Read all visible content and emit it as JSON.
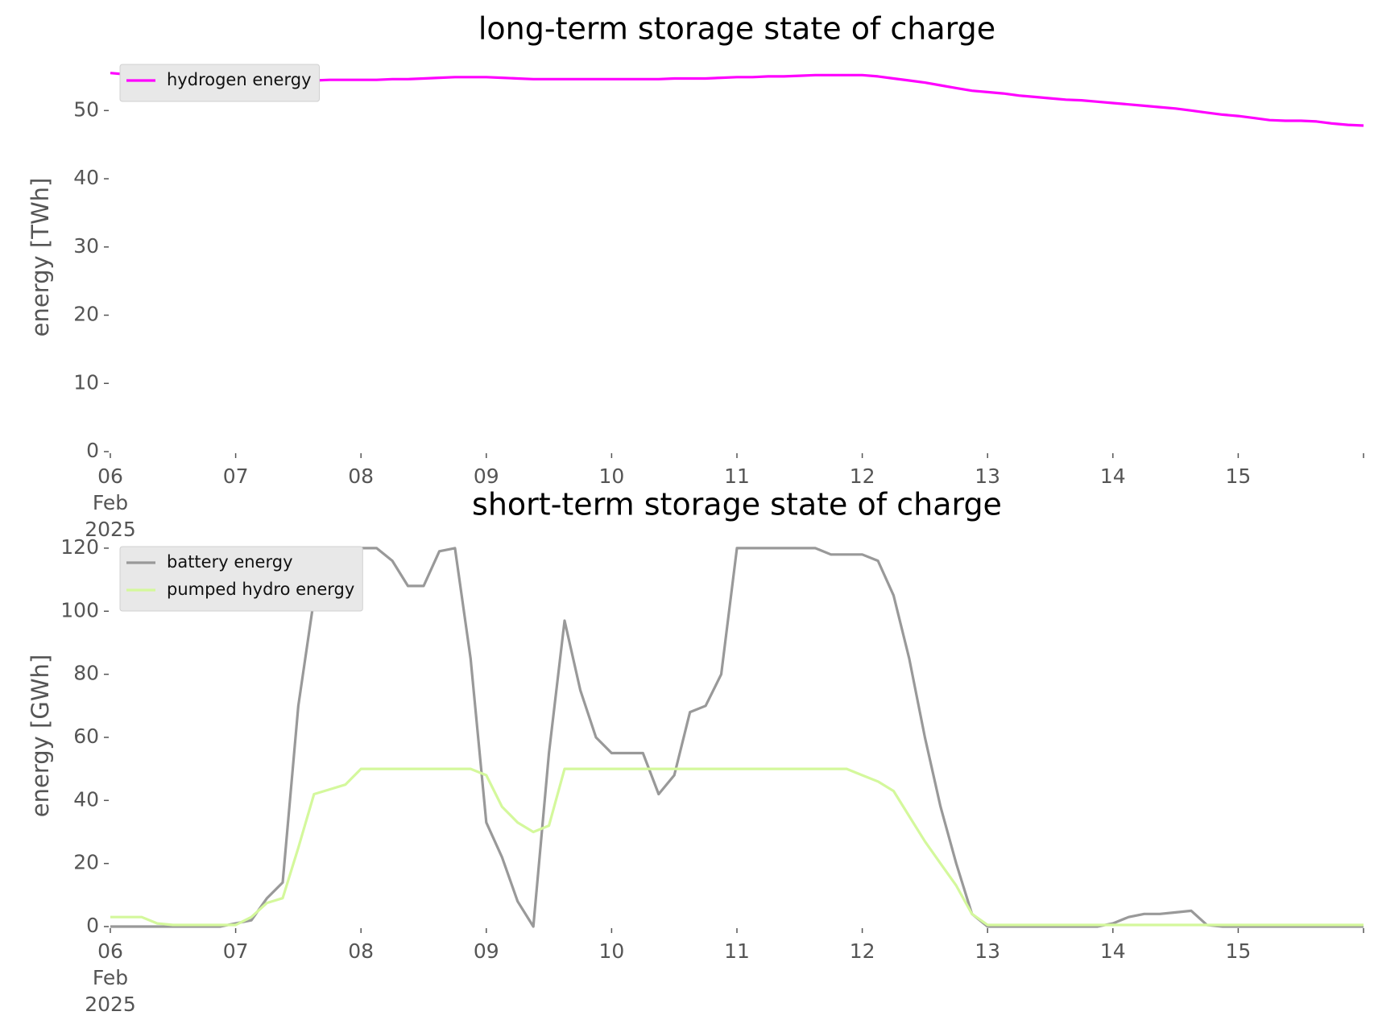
{
  "chart_data": [
    {
      "type": "line",
      "title": "long-term storage state of charge",
      "y_label": "energy [TWh]",
      "x": [
        "2025-02-06T00:00",
        "2025-02-06T03:00",
        "2025-02-06T06:00",
        "2025-02-06T09:00",
        "2025-02-06T12:00",
        "2025-02-06T15:00",
        "2025-02-06T18:00",
        "2025-02-06T21:00",
        "2025-02-07T00:00",
        "2025-02-07T03:00",
        "2025-02-07T06:00",
        "2025-02-07T09:00",
        "2025-02-07T12:00",
        "2025-02-07T15:00",
        "2025-02-07T18:00",
        "2025-02-07T21:00",
        "2025-02-08T00:00",
        "2025-02-08T03:00",
        "2025-02-08T06:00",
        "2025-02-08T09:00",
        "2025-02-08T12:00",
        "2025-02-08T15:00",
        "2025-02-08T18:00",
        "2025-02-08T21:00",
        "2025-02-09T00:00",
        "2025-02-09T03:00",
        "2025-02-09T06:00",
        "2025-02-09T09:00",
        "2025-02-09T12:00",
        "2025-02-09T15:00",
        "2025-02-09T18:00",
        "2025-02-09T21:00",
        "2025-02-10T00:00",
        "2025-02-10T03:00",
        "2025-02-10T06:00",
        "2025-02-10T09:00",
        "2025-02-10T12:00",
        "2025-02-10T15:00",
        "2025-02-10T18:00",
        "2025-02-10T21:00",
        "2025-02-11T00:00",
        "2025-02-11T03:00",
        "2025-02-11T06:00",
        "2025-02-11T09:00",
        "2025-02-11T12:00",
        "2025-02-11T15:00",
        "2025-02-11T18:00",
        "2025-02-11T21:00",
        "2025-02-12T00:00",
        "2025-02-12T03:00",
        "2025-02-12T06:00",
        "2025-02-12T09:00",
        "2025-02-12T12:00",
        "2025-02-12T15:00",
        "2025-02-12T18:00",
        "2025-02-12T21:00",
        "2025-02-13T00:00",
        "2025-02-13T03:00",
        "2025-02-13T06:00",
        "2025-02-13T09:00",
        "2025-02-13T12:00",
        "2025-02-13T15:00",
        "2025-02-13T18:00",
        "2025-02-13T21:00",
        "2025-02-14T00:00",
        "2025-02-14T03:00",
        "2025-02-14T06:00",
        "2025-02-14T09:00",
        "2025-02-14T12:00",
        "2025-02-14T15:00",
        "2025-02-14T18:00",
        "2025-02-14T21:00",
        "2025-02-15T00:00",
        "2025-02-15T03:00",
        "2025-02-15T06:00",
        "2025-02-15T09:00",
        "2025-02-15T12:00",
        "2025-02-15T15:00",
        "2025-02-15T18:00",
        "2025-02-15T21:00",
        "2025-02-16T00:00"
      ],
      "series": [
        {
          "name": "hydrogen energy",
          "color": "#ff00ff",
          "values": [
            55.5,
            55.3,
            55.1,
            55.0,
            54.8,
            54.7,
            54.6,
            54.5,
            54.5,
            54.4,
            54.4,
            54.4,
            54.4,
            54.4,
            54.5,
            54.5,
            54.5,
            54.5,
            54.6,
            54.6,
            54.7,
            54.8,
            54.9,
            54.9,
            54.9,
            54.8,
            54.7,
            54.6,
            54.6,
            54.6,
            54.6,
            54.6,
            54.6,
            54.6,
            54.6,
            54.6,
            54.7,
            54.7,
            54.7,
            54.8,
            54.9,
            54.9,
            55.0,
            55.0,
            55.1,
            55.2,
            55.2,
            55.2,
            55.2,
            55.0,
            54.7,
            54.4,
            54.1,
            53.7,
            53.3,
            52.9,
            52.7,
            52.5,
            52.2,
            52.0,
            51.8,
            51.6,
            51.5,
            51.3,
            51.1,
            50.9,
            50.7,
            50.5,
            50.3,
            50.0,
            49.7,
            49.4,
            49.2,
            48.9,
            48.6,
            48.5,
            48.5,
            48.4,
            48.1,
            47.9,
            47.8
          ]
        }
      ],
      "xlim": [
        "2025-02-06T00:00",
        "2025-02-16T00:00"
      ],
      "xticks": [
        {
          "value": "2025-02-06T00:00",
          "label": [
            "06",
            "Feb",
            "2025"
          ]
        },
        {
          "value": "2025-02-07T00:00",
          "label": "07"
        },
        {
          "value": "2025-02-08T00:00",
          "label": "08"
        },
        {
          "value": "2025-02-09T00:00",
          "label": "09"
        },
        {
          "value": "2025-02-10T00:00",
          "label": "10"
        },
        {
          "value": "2025-02-11T00:00",
          "label": "11"
        },
        {
          "value": "2025-02-12T00:00",
          "label": "12"
        },
        {
          "value": "2025-02-13T00:00",
          "label": "13"
        },
        {
          "value": "2025-02-14T00:00",
          "label": "14"
        },
        {
          "value": "2025-02-15T00:00",
          "label": "15"
        }
      ],
      "ylim": [
        0,
        57
      ],
      "yticks": [
        0,
        10,
        20,
        30,
        40,
        50
      ],
      "legend": "upper left"
    },
    {
      "type": "line",
      "title": "short-term storage state of charge",
      "y_label": "energy [GWh]",
      "x": [
        "2025-02-06T00:00",
        "2025-02-06T03:00",
        "2025-02-06T06:00",
        "2025-02-06T09:00",
        "2025-02-06T12:00",
        "2025-02-06T15:00",
        "2025-02-06T18:00",
        "2025-02-06T21:00",
        "2025-02-07T00:00",
        "2025-02-07T03:00",
        "2025-02-07T06:00",
        "2025-02-07T09:00",
        "2025-02-07T12:00",
        "2025-02-07T15:00",
        "2025-02-07T18:00",
        "2025-02-07T21:00",
        "2025-02-08T00:00",
        "2025-02-08T03:00",
        "2025-02-08T06:00",
        "2025-02-08T09:00",
        "2025-02-08T12:00",
        "2025-02-08T15:00",
        "2025-02-08T18:00",
        "2025-02-08T21:00",
        "2025-02-09T00:00",
        "2025-02-09T03:00",
        "2025-02-09T06:00",
        "2025-02-09T09:00",
        "2025-02-09T12:00",
        "2025-02-09T15:00",
        "2025-02-09T18:00",
        "2025-02-09T21:00",
        "2025-02-10T00:00",
        "2025-02-10T03:00",
        "2025-02-10T06:00",
        "2025-02-10T09:00",
        "2025-02-10T12:00",
        "2025-02-10T15:00",
        "2025-02-10T18:00",
        "2025-02-10T21:00",
        "2025-02-11T00:00",
        "2025-02-11T03:00",
        "2025-02-11T06:00",
        "2025-02-11T09:00",
        "2025-02-11T12:00",
        "2025-02-11T15:00",
        "2025-02-11T18:00",
        "2025-02-11T21:00",
        "2025-02-12T00:00",
        "2025-02-12T03:00",
        "2025-02-12T06:00",
        "2025-02-12T09:00",
        "2025-02-12T12:00",
        "2025-02-12T15:00",
        "2025-02-12T18:00",
        "2025-02-12T21:00",
        "2025-02-13T00:00",
        "2025-02-13T03:00",
        "2025-02-13T06:00",
        "2025-02-13T09:00",
        "2025-02-13T12:00",
        "2025-02-13T15:00",
        "2025-02-13T18:00",
        "2025-02-13T21:00",
        "2025-02-14T00:00",
        "2025-02-14T03:00",
        "2025-02-14T06:00",
        "2025-02-14T09:00",
        "2025-02-14T12:00",
        "2025-02-14T15:00",
        "2025-02-14T18:00",
        "2025-02-14T21:00",
        "2025-02-15T00:00",
        "2025-02-15T03:00",
        "2025-02-15T06:00",
        "2025-02-15T09:00",
        "2025-02-15T12:00",
        "2025-02-15T15:00",
        "2025-02-15T18:00",
        "2025-02-15T21:00",
        "2025-02-16T00:00"
      ],
      "series": [
        {
          "name": "battery energy",
          "color": "#999999",
          "values": [
            0,
            0,
            0,
            0,
            0,
            0,
            0,
            0,
            1,
            2,
            9,
            14,
            70,
            104,
            105,
            108,
            120,
            120,
            116,
            108,
            108,
            119,
            120,
            85,
            33,
            22,
            8,
            0,
            55,
            97,
            75,
            60,
            55,
            55,
            55,
            42,
            48,
            68,
            70,
            80,
            120,
            120,
            120,
            120,
            120,
            120,
            118,
            118,
            118,
            116,
            105,
            85,
            60,
            38,
            20,
            4,
            0,
            0,
            0,
            0,
            0,
            0,
            0,
            0,
            1,
            3,
            4,
            4,
            4.5,
            5,
            0.5,
            0,
            0,
            0,
            0,
            0,
            0,
            0,
            0,
            0,
            0
          ]
        },
        {
          "name": "pumped hydro energy",
          "color": "#d4f89c",
          "values": [
            3,
            3,
            3,
            1,
            0.5,
            0.5,
            0.5,
            0.5,
            0.5,
            3,
            7.5,
            9,
            25,
            42,
            43.5,
            45,
            50,
            50,
            50,
            50,
            50,
            50,
            50,
            50,
            48,
            38,
            33,
            30,
            32,
            50,
            50,
            50,
            50,
            50,
            50,
            50,
            50,
            50,
            50,
            50,
            50,
            50,
            50,
            50,
            50,
            50,
            50,
            50,
            48,
            46,
            43,
            35,
            27,
            20,
            13,
            4,
            0.5,
            0.5,
            0.5,
            0.5,
            0.5,
            0.5,
            0.5,
            0.5,
            0.5,
            0.5,
            0.5,
            0.5,
            0.5,
            0.5,
            0.5,
            0.5,
            0.5,
            0.5,
            0.5,
            0.5,
            0.5,
            0.5,
            0.5,
            0.5,
            0.5
          ]
        }
      ],
      "xlim": [
        "2025-02-06T00:00",
        "2025-02-16T00:00"
      ],
      "xticks": [
        {
          "value": "2025-02-06T00:00",
          "label": [
            "06",
            "Feb",
            "2025"
          ]
        },
        {
          "value": "2025-02-07T00:00",
          "label": "07"
        },
        {
          "value": "2025-02-08T00:00",
          "label": "08"
        },
        {
          "value": "2025-02-09T00:00",
          "label": "09"
        },
        {
          "value": "2025-02-10T00:00",
          "label": "10"
        },
        {
          "value": "2025-02-11T00:00",
          "label": "11"
        },
        {
          "value": "2025-02-12T00:00",
          "label": "12"
        },
        {
          "value": "2025-02-13T00:00",
          "label": "13"
        },
        {
          "value": "2025-02-14T00:00",
          "label": "14"
        },
        {
          "value": "2025-02-15T00:00",
          "label": "15"
        }
      ],
      "ylim": [
        0,
        121
      ],
      "yticks": [
        0,
        20,
        40,
        60,
        80,
        100,
        120
      ],
      "legend": "upper left"
    }
  ]
}
